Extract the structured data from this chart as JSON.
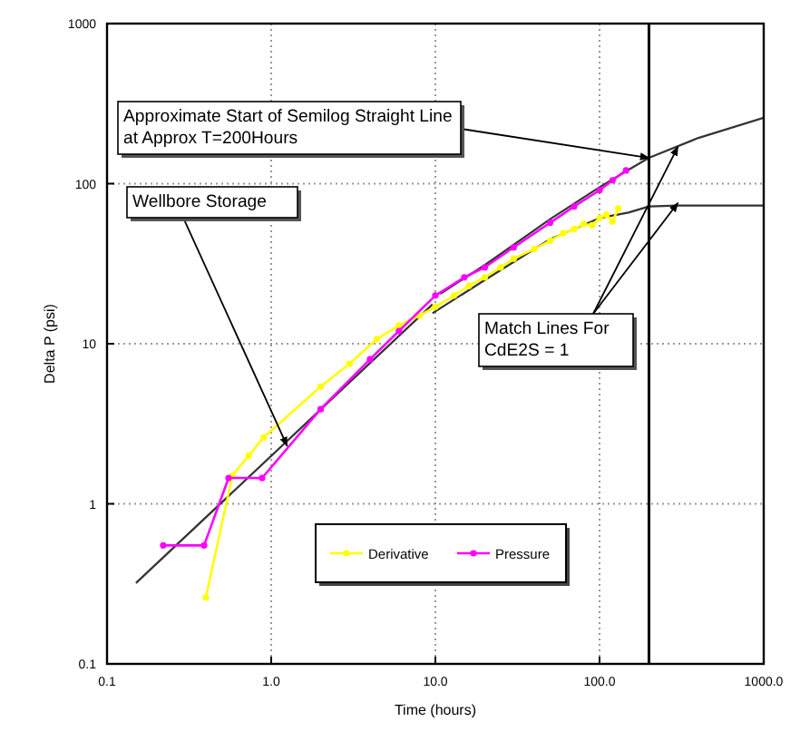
{
  "chart_data": {
    "type": "line",
    "xlabel": "Time (hours)",
    "ylabel": "Delta P (psi)",
    "log": "xy",
    "grid": true,
    "legend": "bottom",
    "marker": "circle",
    "xlim": [
      0.1,
      1000
    ],
    "xticks": [
      {
        "value": 0.1,
        "label": "0.1"
      },
      {
        "value": 1,
        "label": "1.0"
      },
      {
        "value": 10,
        "label": "10.0"
      },
      {
        "value": 100,
        "label": "100.0"
      },
      {
        "value": 1000,
        "label": "1000.0"
      }
    ],
    "ylim": [
      0.1,
      1000
    ],
    "yticks": [
      0.1,
      1,
      10,
      100,
      1000
    ],
    "series": [
      {
        "name": "Derivative",
        "color": "#ffff00",
        "x": [
          0.4,
          0.58,
          0.73,
          0.9,
          2.0,
          3,
          4.4,
          6,
          8,
          10,
          13,
          16,
          20,
          25,
          30,
          40,
          50,
          60,
          70,
          80,
          90,
          100,
          110,
          120,
          130
        ],
        "values": [
          0.26,
          1.5,
          2.0,
          2.6,
          5.4,
          7.5,
          10.7,
          13,
          15,
          17,
          20,
          23,
          26,
          30,
          34,
          39,
          44,
          49,
          52,
          56,
          55,
          61,
          64,
          58,
          70
        ]
      },
      {
        "name": "Pressure",
        "color": "#ff00ff",
        "x": [
          0.22,
          0.39,
          0.55,
          0.88,
          2.0,
          4,
          6,
          10,
          15,
          20,
          30,
          50,
          70,
          100,
          120,
          145
        ],
        "values": [
          0.55,
          0.55,
          1.45,
          1.45,
          3.9,
          8,
          12,
          20,
          26,
          30,
          40,
          57,
          72,
          91,
          105,
          121
        ]
      },
      {
        "type": "line",
        "marker": "none",
        "color": "#333333",
        "x": [
          0.15,
          9.6
        ],
        "values": [
          0.32,
          17.6
        ]
      },
      {
        "type": "line",
        "marker": "none",
        "color": "#333333",
        "x": [
          10.7,
          20,
          50,
          100,
          150,
          200,
          400,
          1000
        ],
        "values": [
          20.5,
          31,
          60,
          95,
          122,
          145,
          193,
          258
        ]
      },
      {
        "type": "line",
        "marker": "none",
        "color": "#333333",
        "x": [
          9.6,
          20,
          50,
          100,
          150,
          200,
          300,
          1000
        ],
        "values": [
          15.5,
          25,
          45,
          61,
          66,
          72,
          73,
          73
        ]
      }
    ],
    "ref_lines": [
      {
        "axis": "x",
        "value": 200,
        "color": "#000000"
      }
    ],
    "annotations": [
      {
        "text": "Approximate Start of Semilog Straight Line\nat Approx T=200Hours",
        "x": 200,
        "y": 145
      },
      {
        "text": "Wellbore Storage",
        "x": 1.25,
        "y": 2.3
      },
      {
        "text": "Match Lines For\nCdE2S = 1",
        "x": 300,
        "y": 170
      }
    ]
  }
}
